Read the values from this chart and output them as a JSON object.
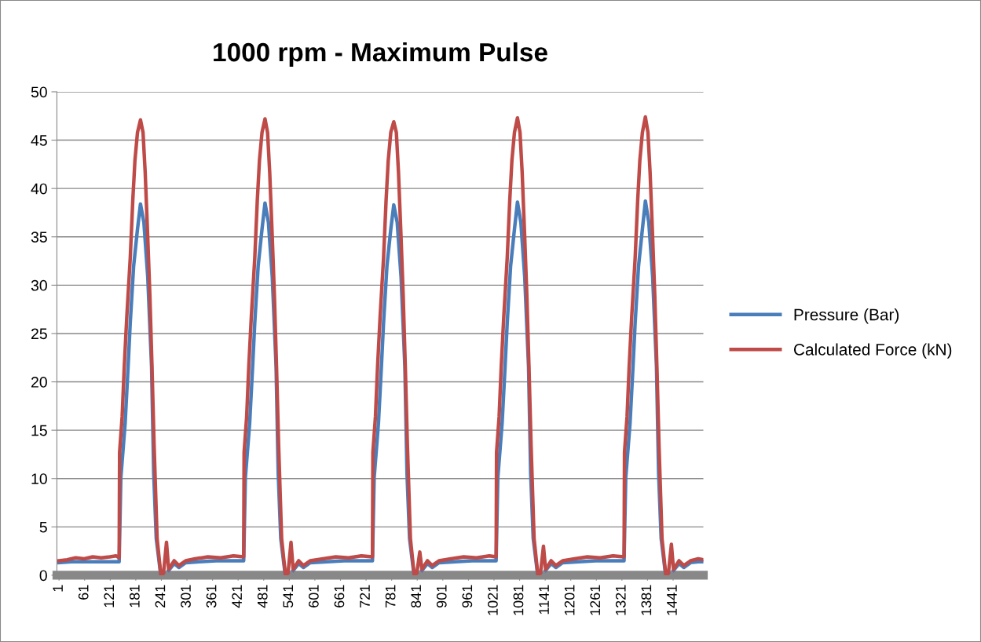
{
  "chart_data": {
    "type": "line",
    "title": "1000 rpm - Maximum Pulse",
    "xlim": [
      -4,
      1512
    ],
    "xticks": [
      1,
      61,
      121,
      181,
      241,
      301,
      361,
      421,
      481,
      541,
      601,
      661,
      721,
      781,
      841,
      901,
      961,
      1021,
      1081,
      1141,
      1201,
      1261,
      1321,
      1381,
      1441
    ],
    "ylim": [
      0,
      50
    ],
    "yticks": [
      0,
      5,
      10,
      15,
      20,
      25,
      30,
      35,
      40,
      45,
      50
    ],
    "grid": "y",
    "legend": "right",
    "line_style": "solid",
    "series": [
      {
        "name": "Pressure (Bar)",
        "color": "#4a7ebb",
        "x": [
          1,
          30,
          60,
          90,
          120,
          142,
          146,
          156,
          163,
          168,
          176,
          185,
          192,
          200,
          209,
          218,
          223,
          229,
          239,
          246,
          253,
          258,
          271,
          282,
          298,
          330,
          370,
          410,
          434,
          438,
          448,
          455,
          460,
          468,
          477,
          484,
          492,
          501,
          510,
          515,
          521,
          531,
          538,
          545,
          550,
          563,
          574,
          590,
          630,
          670,
          710,
          736,
          740,
          750,
          757,
          762,
          770,
          779,
          786,
          794,
          803,
          812,
          817,
          823,
          833,
          840,
          847,
          852,
          865,
          876,
          892,
          930,
          970,
          1010,
          1026,
          1030,
          1040,
          1047,
          1052,
          1060,
          1069,
          1076,
          1084,
          1093,
          1102,
          1107,
          1113,
          1123,
          1130,
          1137,
          1142,
          1155,
          1166,
          1182,
          1220,
          1260,
          1300,
          1326,
          1330,
          1340,
          1347,
          1352,
          1360,
          1369,
          1376,
          1384,
          1393,
          1402,
          1407,
          1413,
          1423,
          1430,
          1437,
          1442,
          1455,
          1466,
          1482,
          1500,
          1512
        ],
        "values": [
          1.3,
          1.4,
          1.4,
          1.4,
          1.4,
          1.4,
          10.1,
          15.7,
          21.6,
          26.1,
          32,
          35.8,
          38.4,
          36.5,
          30.9,
          21.6,
          10.5,
          3.8,
          0.2,
          0.3,
          null,
          0.5,
          1.2,
          0.8,
          1.3,
          1.4,
          1.5,
          1.5,
          1.5,
          10.1,
          15.7,
          21.6,
          26.1,
          32,
          35.8,
          38.5,
          36.5,
          30.9,
          21.6,
          10.5,
          3.8,
          0.2,
          0.3,
          null,
          0.5,
          1.2,
          0.8,
          1.3,
          1.4,
          1.5,
          1.5,
          1.5,
          10.1,
          15.7,
          21.6,
          26.1,
          32,
          35.8,
          38.3,
          36.5,
          30.9,
          21.6,
          10.5,
          3.8,
          0.2,
          0.3,
          null,
          0.5,
          1.2,
          0.8,
          1.3,
          1.4,
          1.5,
          1.5,
          1.5,
          10.1,
          15.7,
          21.6,
          26.1,
          32,
          35.8,
          38.6,
          36.5,
          30.9,
          21.6,
          10.5,
          3.8,
          0.2,
          0.3,
          null,
          0.5,
          1.2,
          0.8,
          1.3,
          1.4,
          1.5,
          1.5,
          1.5,
          10.1,
          15.7,
          21.6,
          26.1,
          32,
          35.8,
          38.7,
          36.5,
          30.9,
          21.6,
          10.5,
          3.8,
          0.2,
          0.3,
          null,
          0.5,
          1.2,
          0.8,
          1.3,
          1.4,
          1.4
        ]
      },
      {
        "name": "Calculated Force (kN)",
        "color": "#be4b48",
        "x": [
          1,
          20,
          40,
          60,
          80,
          100,
          120,
          135,
          142,
          143,
          149,
          154,
          160,
          168,
          174,
          179,
          185,
          192,
          198,
          203,
          209,
          214,
          219,
          224,
          231,
          240,
          246,
          253,
          258,
          271,
          282,
          298,
          320,
          350,
          380,
          410,
          434,
          435,
          441,
          446,
          452,
          460,
          466,
          471,
          477,
          484,
          490,
          495,
          501,
          506,
          511,
          516,
          523,
          532,
          538,
          545,
          550,
          563,
          574,
          590,
          620,
          650,
          680,
          710,
          736,
          737,
          743,
          748,
          754,
          762,
          768,
          773,
          779,
          786,
          792,
          797,
          803,
          808,
          813,
          818,
          825,
          834,
          840,
          847,
          852,
          865,
          876,
          892,
          920,
          950,
          980,
          1010,
          1026,
          1027,
          1033,
          1038,
          1044,
          1052,
          1058,
          1063,
          1069,
          1076,
          1082,
          1087,
          1093,
          1098,
          1103,
          1108,
          1115,
          1124,
          1130,
          1137,
          1142,
          1155,
          1166,
          1182,
          1210,
          1240,
          1270,
          1300,
          1326,
          1327,
          1333,
          1338,
          1344,
          1352,
          1358,
          1363,
          1369,
          1376,
          1382,
          1387,
          1393,
          1398,
          1403,
          1408,
          1415,
          1424,
          1430,
          1437,
          1442,
          1455,
          1466,
          1482,
          1500,
          1512
        ],
        "values": [
          1.5,
          1.6,
          1.8,
          1.7,
          1.9,
          1.8,
          1.9,
          2.0,
          1.8,
          12.7,
          16.4,
          21.6,
          26.8,
          32.8,
          38.8,
          42.9,
          45.8,
          47.1,
          45.8,
          41.7,
          35,
          29,
          21.6,
          13.4,
          3.8,
          0,
          0.2,
          3.4,
          0.6,
          1.5,
          1.0,
          1.5,
          1.7,
          1.9,
          1.8,
          2.0,
          1.9,
          12.7,
          16.4,
          21.6,
          26.8,
          32.8,
          38.8,
          42.9,
          45.8,
          47.2,
          45.8,
          41.7,
          35,
          29,
          21.6,
          13.4,
          3.8,
          0,
          0.2,
          3.4,
          0.6,
          1.5,
          1.0,
          1.5,
          1.7,
          1.9,
          1.8,
          2.0,
          1.9,
          12.7,
          16.4,
          21.6,
          26.8,
          32.8,
          38.8,
          42.9,
          45.8,
          46.9,
          45.8,
          41.7,
          35,
          29,
          21.6,
          13.4,
          3.8,
          0,
          0.2,
          2.4,
          0.6,
          1.5,
          1.0,
          1.5,
          1.7,
          1.9,
          1.8,
          2.0,
          1.9,
          12.7,
          16.4,
          21.6,
          26.8,
          32.8,
          38.8,
          42.9,
          45.8,
          47.3,
          45.8,
          41.7,
          35,
          29,
          21.6,
          13.4,
          3.8,
          0,
          0.2,
          3.0,
          0.6,
          1.5,
          1.0,
          1.5,
          1.7,
          1.9,
          1.8,
          2.0,
          1.9,
          12.7,
          16.4,
          21.6,
          26.8,
          32.8,
          38.8,
          42.9,
          45.8,
          47.4,
          45.8,
          41.7,
          35,
          29,
          21.6,
          13.4,
          3.8,
          0,
          0.2,
          3.2,
          0.6,
          1.5,
          1.0,
          1.5,
          1.7,
          1.6
        ]
      }
    ]
  }
}
